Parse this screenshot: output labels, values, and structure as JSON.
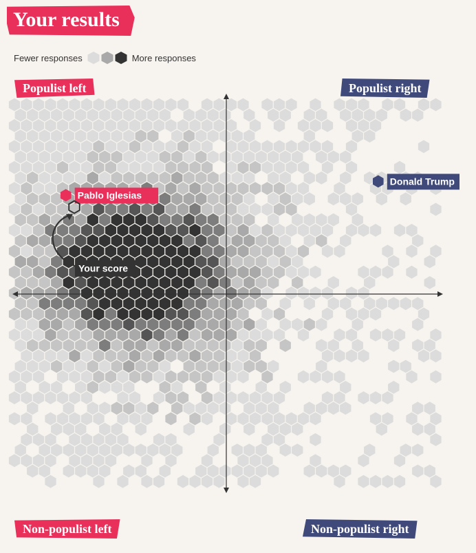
{
  "title": "Your results",
  "legend": {
    "low_label": "Fewer responses",
    "high_label": "More responses"
  },
  "quadrants": {
    "top_left": "Populist left",
    "top_right": "Populist right",
    "bottom_left": "Non-populist left",
    "bottom_right": "Non-populist right"
  },
  "colors": {
    "background": "#f7f3ee",
    "hex_density": [
      "#dcdcdc",
      "#c5c5c5",
      "#a9a9a9",
      "#7d7d7d",
      "#555555",
      "#333333"
    ],
    "accent_red": "#e8305a",
    "accent_blue": "#3f4a7a",
    "your_score_label_bg": "#333333"
  },
  "chart_data": {
    "type": "heatmap",
    "description_axes": {
      "x": "left ← → right",
      "y": "non-populist ↓ ↑ populist"
    },
    "xlim": [
      -1,
      1
    ],
    "ylim": [
      -1,
      1
    ],
    "grid": false,
    "annotations": [
      {
        "label": "Pablo Iglesias",
        "x": -0.76,
        "y": 0.5,
        "color": "#e8305a"
      },
      {
        "label": "Donald Trump",
        "x": 0.71,
        "y": 0.57,
        "color": "#3f4a7a"
      },
      {
        "label": "Your score",
        "x": -0.72,
        "y": 0.44
      }
    ]
  }
}
